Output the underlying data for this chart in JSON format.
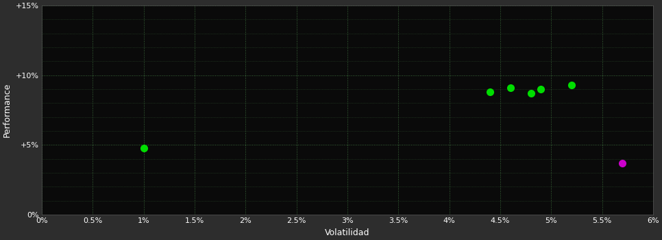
{
  "background_color": "#2d2d2d",
  "plot_bg_color": "#0a0a0a",
  "grid_color": "#3a6a3a",
  "text_color": "#ffffff",
  "xlabel": "Volatilidad",
  "ylabel": "Performance",
  "xlim": [
    0.0,
    0.06
  ],
  "ylim": [
    0.0,
    0.15
  ],
  "xticks": [
    0.0,
    0.005,
    0.01,
    0.015,
    0.02,
    0.025,
    0.03,
    0.035,
    0.04,
    0.045,
    0.05,
    0.055,
    0.06
  ],
  "yticks": [
    0.0,
    0.05,
    0.1,
    0.15
  ],
  "green_points": [
    [
      0.01,
      0.048
    ],
    [
      0.044,
      0.088
    ],
    [
      0.046,
      0.091
    ],
    [
      0.048,
      0.087
    ],
    [
      0.049,
      0.09
    ],
    [
      0.052,
      0.093
    ]
  ],
  "magenta_points": [
    [
      0.057,
      0.037
    ]
  ],
  "green_color": "#00dd00",
  "magenta_color": "#cc00cc",
  "marker_size": 7
}
